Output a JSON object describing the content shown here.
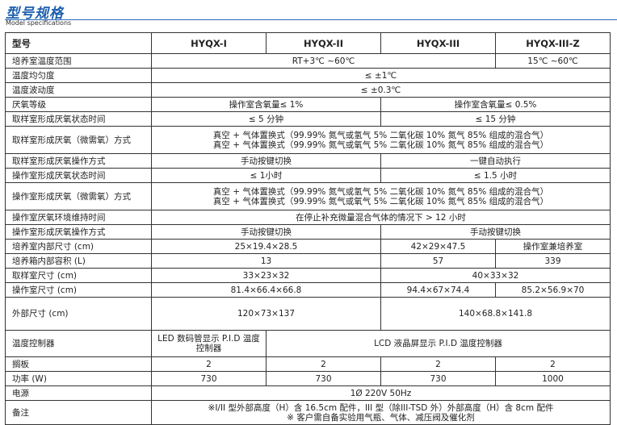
{
  "title": "型号规格",
  "subtitle": "Model specifications",
  "header": [
    "型号",
    "HYQX-I",
    "HYQX-II",
    "HYQX-III",
    "HYQX-III-Z"
  ],
  "rows": [
    {
      "label": "培养室温度范围",
      "h": 1,
      "cells": [
        {
          "text": "RT+3℃ ~60℃",
          "span": 3
        },
        {
          "text": "15℃ ~60℃",
          "span": 1
        }
      ]
    },
    {
      "label": "温度均匀度",
      "h": 1,
      "cells": [
        {
          "text": "≤ ±1℃",
          "span": 4
        }
      ]
    },
    {
      "label": "温度波动度",
      "h": 1,
      "cells": [
        {
          "text": "≤ ±0.3℃",
          "span": 4
        }
      ]
    },
    {
      "label": "厌氧等级",
      "h": 1,
      "cells": [
        {
          "text": "操作室含氧量≤ 1%",
          "span": 2
        },
        {
          "text": "操作室含氧量≤ 0.5%",
          "span": 2
        }
      ]
    },
    {
      "label": "取样室形成厌氧状态时间",
      "h": 1,
      "cells": [
        {
          "text": "≤ 5 分钟",
          "span": 2
        },
        {
          "text": "≤ 15 分钟",
          "span": 2
        }
      ]
    },
    {
      "label": "取样室形成厌氧（微需氧）方式",
      "h": 2,
      "cells": [
        {
          "text": "真空 + 气体置换式（99.99% 氮气或氢气 5% 二氧化碳 10% 氮气 85% 组成的混合气）\n真空 + 气体置换式（99.99% 氮气或氧气 5% 二氧化碳 10% 氮气 85% 组成的混合气）",
          "span": 4
        }
      ]
    },
    {
      "label": "取样室形成厌氧操作方式",
      "h": 1,
      "cells": [
        {
          "text": "手动按键切换",
          "span": 2
        },
        {
          "text": "一键自动执行",
          "span": 2
        }
      ]
    },
    {
      "label": "操作室形成厌氧状态时间",
      "h": 1,
      "cells": [
        {
          "text": "≤ 1小时",
          "span": 2
        },
        {
          "text": "≤ 1.5 小时",
          "span": 2
        }
      ]
    },
    {
      "label": "操作室形成厌氧（微需氧）方式",
      "h": 2,
      "cells": [
        {
          "text": "真空 + 气体置换式（99.99% 氮气或氢气 5% 二氧化碳 10% 氮气 85% 组成的混合气）\n真空 + 气体置换式（99.99% 氮气或氧气 5% 二氧化碳 10% 氮气 85% 组成的混合气）",
          "span": 4
        }
      ]
    },
    {
      "label": "操作室厌氧环境维持时间",
      "h": 1,
      "cells": [
        {
          "text": "在停止补充微量混合气体的情况下 > 12 小时",
          "span": 4
        }
      ]
    },
    {
      "label": "操作室形成厌氧操作方式",
      "h": 1,
      "cells": [
        {
          "text": "手动按键切换",
          "span": 2
        },
        {
          "text": "手动按键切换",
          "span": 2
        }
      ]
    },
    {
      "label": "培养室内部尺寸 (cm)",
      "h": 1,
      "cells": [
        {
          "text": "25×19.4×28.5",
          "span": 2
        },
        {
          "text": "42×29×47.5",
          "span": 1
        },
        {
          "text": "操作室兼培养室",
          "span": 1
        }
      ]
    },
    {
      "label": "培养箱内部容积 (L)",
      "h": 1,
      "cells": [
        {
          "text": "13",
          "span": 2
        },
        {
          "text": "57",
          "span": 1
        },
        {
          "text": "339",
          "span": 1
        }
      ]
    },
    {
      "label": "取样室尺寸 (cm)",
      "h": 1,
      "cells": [
        {
          "text": "33×23×32",
          "span": 2
        },
        {
          "text": "40×33×32",
          "span": 2
        }
      ]
    },
    {
      "label": "操作室尺寸 (cm)",
      "h": 1,
      "cells": [
        {
          "text": "81.4×66.4×66.8",
          "span": 2
        },
        {
          "text": "94.4×67×74.4",
          "span": 1
        },
        {
          "text": "85.2×56.9×70",
          "span": 1
        }
      ]
    },
    {
      "label": "外部尺寸 (cm)",
      "h": 2.4,
      "cells": [
        {
          "text": "120×73×137",
          "span": 2
        },
        {
          "text": "140×68.8×141.8",
          "span": 2
        }
      ]
    },
    {
      "label": "温度控制器",
      "h": 1.9,
      "cells": [
        {
          "text": "LED 数码管显示 P.I.D 温度控制器",
          "span": 1,
          "wrap": true
        },
        {
          "text": "LCD 液晶屏显示 P.I.D 温度控制器",
          "span": 3
        }
      ]
    },
    {
      "label": "搁板",
      "h": 1,
      "cells": [
        {
          "text": "2",
          "span": 1
        },
        {
          "text": "2",
          "span": 1
        },
        {
          "text": "2",
          "span": 1
        },
        {
          "text": "2",
          "span": 1
        }
      ]
    },
    {
      "label": "功率 (W)",
      "h": 1,
      "cells": [
        {
          "text": "730",
          "span": 1
        },
        {
          "text": "730",
          "span": 1
        },
        {
          "text": "730",
          "span": 1
        },
        {
          "text": "1000",
          "span": 1
        }
      ]
    },
    {
      "label": "电源",
      "h": 1,
      "cells": [
        {
          "text": "1Ø 220V 50Hz",
          "span": 4
        }
      ]
    },
    {
      "label": "备注",
      "h": 1.75,
      "cells": [
        {
          "text": "※I/II 型外部高度（H）含 16.5cm 配件，III 型（除III-TSD 外）外部高度（H）含 8cm 配件\n※ 客户需自备实验用气瓶、气体、减压阀及催化剂",
          "span": 4
        }
      ]
    }
  ]
}
